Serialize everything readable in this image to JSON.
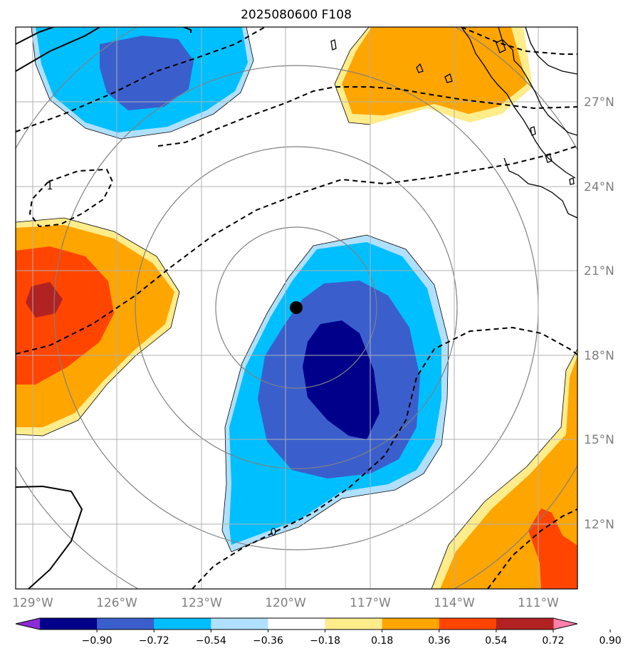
{
  "title": "2025080600 F108",
  "map": {
    "longitude_ticks": [
      "129°W",
      "126°W",
      "123°W",
      "120°W",
      "117°W",
      "114°W",
      "111°W"
    ],
    "latitude_ticks": [
      "27°N",
      "24°N",
      "21°N",
      "18°N",
      "15°N",
      "12°N"
    ],
    "longitude_range_deg": [
      -129.6,
      -109.6
    ],
    "latitude_range_deg": [
      9.8,
      29.7
    ],
    "gridlines": true,
    "storm_center": {
      "lon": -119.7,
      "lat": 19.7
    },
    "range_rings": 4,
    "contour_labels": [
      "0",
      "1"
    ],
    "coastline_color": "#000000",
    "ring_color": "#808080"
  },
  "colorbar": {
    "tick_labels": [
      "−0.90",
      "−0.72",
      "−0.54",
      "−0.36",
      "−0.18",
      "0.18",
      "0.36",
      "0.54",
      "0.72",
      "0.90"
    ],
    "levels": [
      -0.9,
      -0.72,
      -0.54,
      -0.36,
      -0.18,
      0.18,
      0.36,
      0.54,
      0.72,
      0.9
    ],
    "colors": [
      "#8b2bd6",
      "#00008b",
      "#3a5fcd",
      "#00bfff",
      "#b0e0ff",
      "#ffffff",
      "#ffec8b",
      "#ffa500",
      "#ff4500",
      "#b22222",
      "#ff82ab"
    ],
    "extend": "both"
  }
}
